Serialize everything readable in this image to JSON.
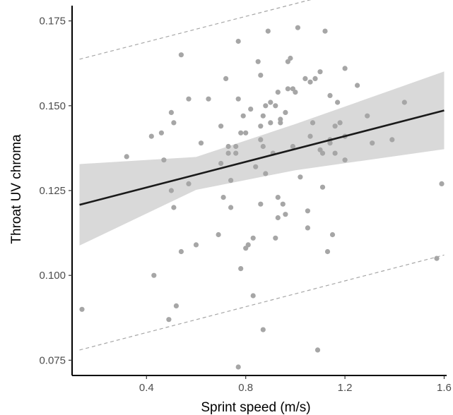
{
  "chart_data": {
    "type": "scatter",
    "xlabel": "Sprint speed (m/s)",
    "ylabel": "Throat UV chroma",
    "xlim": [
      0.1,
      1.61
    ],
    "ylim": [
      0.0705,
      0.1795
    ],
    "x_ticks": [
      0.4,
      0.8,
      1.2,
      1.6
    ],
    "x_tick_labels": [
      "0.4",
      "0.8",
      "1.2",
      "1.6"
    ],
    "y_ticks": [
      0.075,
      0.1,
      0.125,
      0.15,
      0.175
    ],
    "y_tick_labels": [
      "0.075",
      "0.100",
      "0.125",
      "0.150",
      "0.175"
    ],
    "grid": false,
    "colors": {
      "points": "#a6a6a6",
      "fit_line": "#1a1a1a",
      "confidence_band": "#d9d9d9",
      "prediction_lines": "#a6a6a6",
      "axis": "#000000"
    },
    "points": [
      [
        0.14,
        0.09
      ],
      [
        0.32,
        0.135
      ],
      [
        0.42,
        0.141
      ],
      [
        0.43,
        0.1
      ],
      [
        0.46,
        0.142
      ],
      [
        0.47,
        0.134
      ],
      [
        0.49,
        0.087
      ],
      [
        0.5,
        0.148
      ],
      [
        0.5,
        0.125
      ],
      [
        0.51,
        0.145
      ],
      [
        0.51,
        0.12
      ],
      [
        0.52,
        0.091
      ],
      [
        0.54,
        0.165
      ],
      [
        0.54,
        0.107
      ],
      [
        0.57,
        0.152
      ],
      [
        0.57,
        0.127
      ],
      [
        0.6,
        0.109
      ],
      [
        0.62,
        0.139
      ],
      [
        0.65,
        0.152
      ],
      [
        0.69,
        0.112
      ],
      [
        0.7,
        0.133
      ],
      [
        0.7,
        0.144
      ],
      [
        0.71,
        0.123
      ],
      [
        0.72,
        0.158
      ],
      [
        0.73,
        0.138
      ],
      [
        0.73,
        0.136
      ],
      [
        0.74,
        0.12
      ],
      [
        0.74,
        0.128
      ],
      [
        0.76,
        0.138
      ],
      [
        0.76,
        0.136
      ],
      [
        0.77,
        0.073
      ],
      [
        0.77,
        0.152
      ],
      [
        0.77,
        0.169
      ],
      [
        0.78,
        0.142
      ],
      [
        0.78,
        0.102
      ],
      [
        0.79,
        0.147
      ],
      [
        0.8,
        0.142
      ],
      [
        0.8,
        0.108
      ],
      [
        0.81,
        0.109
      ],
      [
        0.82,
        0.149
      ],
      [
        0.83,
        0.094
      ],
      [
        0.83,
        0.111
      ],
      [
        0.84,
        0.132
      ],
      [
        0.85,
        0.163
      ],
      [
        0.86,
        0.121
      ],
      [
        0.86,
        0.144
      ],
      [
        0.86,
        0.14
      ],
      [
        0.86,
        0.159
      ],
      [
        0.87,
        0.084
      ],
      [
        0.87,
        0.147
      ],
      [
        0.87,
        0.138
      ],
      [
        0.88,
        0.15
      ],
      [
        0.88,
        0.13
      ],
      [
        0.89,
        0.172
      ],
      [
        0.9,
        0.151
      ],
      [
        0.9,
        0.145
      ],
      [
        0.91,
        0.136
      ],
      [
        0.92,
        0.111
      ],
      [
        0.92,
        0.15
      ],
      [
        0.93,
        0.154
      ],
      [
        0.93,
        0.123
      ],
      [
        0.93,
        0.117
      ],
      [
        0.94,
        0.146
      ],
      [
        0.94,
        0.145
      ],
      [
        0.95,
        0.121
      ],
      [
        0.96,
        0.148
      ],
      [
        0.96,
        0.118
      ],
      [
        0.97,
        0.155
      ],
      [
        0.97,
        0.163
      ],
      [
        0.98,
        0.164
      ],
      [
        0.99,
        0.155
      ],
      [
        0.99,
        0.138
      ],
      [
        1.0,
        0.154
      ],
      [
        1.01,
        0.173
      ],
      [
        1.02,
        0.129
      ],
      [
        1.04,
        0.158
      ],
      [
        1.05,
        0.119
      ],
      [
        1.05,
        0.114
      ],
      [
        1.06,
        0.141
      ],
      [
        1.06,
        0.157
      ],
      [
        1.07,
        0.145
      ],
      [
        1.08,
        0.158
      ],
      [
        1.09,
        0.078
      ],
      [
        1.1,
        0.16
      ],
      [
        1.1,
        0.137
      ],
      [
        1.11,
        0.126
      ],
      [
        1.11,
        0.136
      ],
      [
        1.12,
        0.172
      ],
      [
        1.13,
        0.107
      ],
      [
        1.14,
        0.139
      ],
      [
        1.14,
        0.153
      ],
      [
        1.14,
        0.14
      ],
      [
        1.15,
        0.112
      ],
      [
        1.16,
        0.144
      ],
      [
        1.16,
        0.136
      ],
      [
        1.17,
        0.151
      ],
      [
        1.18,
        0.145
      ],
      [
        1.2,
        0.161
      ],
      [
        1.2,
        0.134
      ],
      [
        1.2,
        0.141
      ],
      [
        1.25,
        0.156
      ],
      [
        1.29,
        0.147
      ],
      [
        1.31,
        0.139
      ],
      [
        1.39,
        0.14
      ],
      [
        1.44,
        0.151
      ],
      [
        1.57,
        0.105
      ],
      [
        1.59,
        0.127
      ]
    ],
    "fit_line": [
      [
        0.13,
        0.1208
      ],
      [
        1.6,
        0.1486
      ]
    ],
    "confidence_band": {
      "x": [
        0.13,
        0.6,
        1.0,
        1.6
      ],
      "lower": [
        0.1088,
        0.1252,
        0.131,
        0.1372
      ],
      "upper": [
        0.1328,
        0.1349,
        0.1446,
        0.1601
      ]
    },
    "prediction_upper": [
      [
        0.13,
        0.1637
      ],
      [
        1.6,
        0.1914
      ]
    ],
    "prediction_lower": [
      [
        0.13,
        0.078
      ],
      [
        1.6,
        0.106
      ]
    ]
  }
}
